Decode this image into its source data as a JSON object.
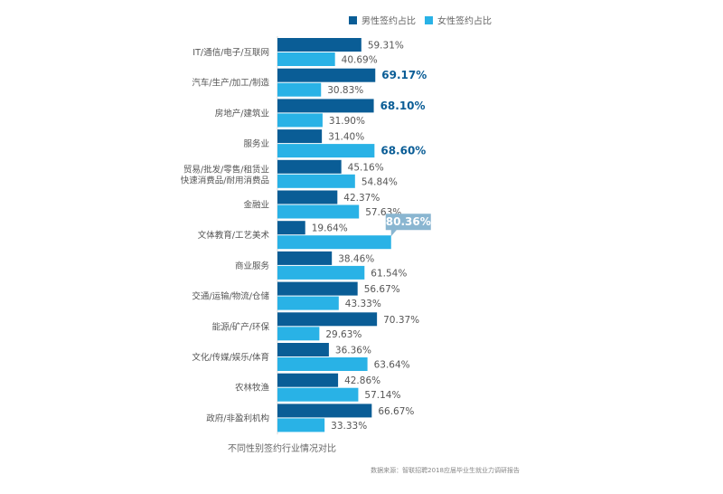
{
  "chart_data": {
    "type": "bar",
    "orientation": "horizontal",
    "categories": [
      [
        "IT/通信/电子/互联网"
      ],
      [
        "汽车/生产/加工/制造"
      ],
      [
        "房地产/建筑业"
      ],
      [
        "服务业"
      ],
      [
        "贸易/批发/零售/租赁业",
        "快速消费品/耐用消费品"
      ],
      [
        "金融业"
      ],
      [
        "文体教育/工艺美术"
      ],
      [
        "商业服务"
      ],
      [
        "交通/运输/物流/仓储"
      ],
      [
        "能源/矿产/环保"
      ],
      [
        "文化/传媒/娱乐/体育"
      ],
      [
        "农林牧渔"
      ],
      [
        "政府/非盈利机构"
      ]
    ],
    "series": [
      {
        "name": "男性签约占比",
        "color": "#0a5d96",
        "values": [
          59.31,
          69.17,
          68.1,
          31.4,
          45.16,
          42.37,
          19.64,
          38.46,
          56.67,
          70.37,
          36.36,
          42.86,
          66.67
        ],
        "labels": [
          "59.31%",
          "69.17%",
          "68.10%",
          "31.40%",
          "45.16%",
          "42.37%",
          "19.64%",
          "38.46%",
          "56.67%",
          "70.37%",
          "36.36%",
          "42.86%",
          "66.67%"
        ],
        "highlight": [
          false,
          true,
          true,
          false,
          false,
          false,
          false,
          false,
          false,
          false,
          false,
          false,
          false
        ]
      },
      {
        "name": "女性签约占比",
        "color": "#29b2e6",
        "values": [
          40.69,
          30.83,
          31.9,
          68.6,
          54.84,
          57.63,
          80.36,
          61.54,
          43.33,
          29.63,
          63.64,
          57.14,
          33.33
        ],
        "labels": [
          "40.69%",
          "30.83%",
          "31.90%",
          "68.60%",
          "54.84%",
          "57.63%",
          "80.36%",
          "61.54%",
          "43.33%",
          "29.63%",
          "63.64%",
          "57.14%",
          "33.33%"
        ],
        "highlight": [
          false,
          false,
          false,
          true,
          false,
          false,
          false,
          false,
          false,
          false,
          false,
          false,
          false
        ],
        "callout": [
          false,
          false,
          false,
          false,
          false,
          false,
          true,
          false,
          false,
          false,
          false,
          false,
          false
        ]
      }
    ],
    "xlim": [
      0,
      100
    ],
    "legend_position": "top-right",
    "caption": "不同性别签约行业情况对比",
    "source": "数据来源：智联招聘2018应届毕业生就业力调研报告",
    "callout_color": "#8ab6d1",
    "grid": false
  }
}
